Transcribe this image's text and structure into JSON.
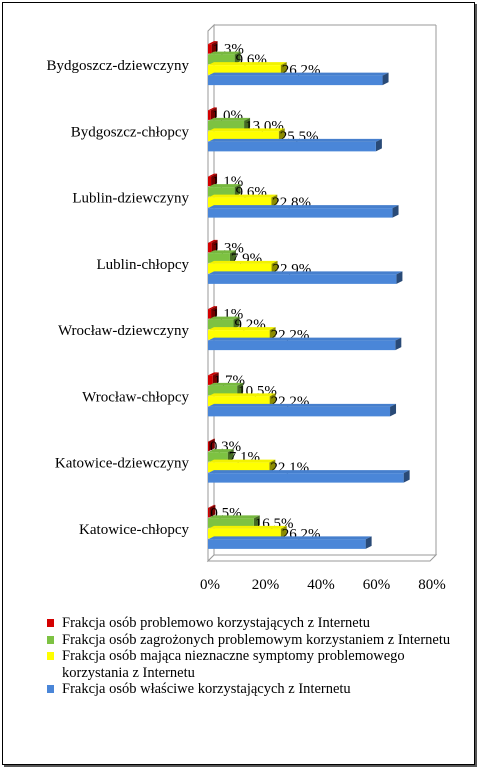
{
  "chart_data": {
    "type": "bar",
    "orientation": "horizontal",
    "categories": [
      "Bydgoszcz-dziewczyny",
      "Bydgoszcz-chłopcy",
      "Lublin-dziewczyny",
      "Lublin-chłopcy",
      "Wrocław-dziewczyny",
      "Wrocław-chłopcy",
      "Katowice-dziewczyny",
      "Katowice-chłopcy"
    ],
    "series": [
      {
        "name": "Frakcja osób problemowo korzystających z Internetu",
        "color": "#d40000",
        "values": [
          1.3,
          1.0,
          1.1,
          1.3,
          1.1,
          1.7,
          0.3,
          0.5
        ],
        "labels": [
          "1,3%",
          "1,0%",
          "1,1%",
          "1,3%",
          "1,1%",
          "1,7%",
          "0,3%",
          "0,5%"
        ]
      },
      {
        "name": "Frakcja osób zagrożonych problemowym korzystaniem z Internetu",
        "color": "#7dc242",
        "values": [
          9.6,
          13.0,
          9.6,
          7.9,
          9.2,
          10.5,
          7.1,
          16.5
        ],
        "labels": [
          "9,6%",
          "13,0%",
          "9,6%",
          "7,9%",
          "9,2%",
          "10,5%",
          "7,1%",
          "16,5%"
        ]
      },
      {
        "name": "Frakcja osób mająca nieznaczne symptomy problemowego korzystania z Internetu",
        "color": "#ffff00",
        "values": [
          26.2,
          25.5,
          22.8,
          22.9,
          22.2,
          22.2,
          22.1,
          26.2
        ],
        "labels": [
          "26,2%",
          "25,5%",
          "22,8%",
          "22,9%",
          "22,2%",
          "22,2%",
          "22,1%",
          "26,2%"
        ]
      },
      {
        "name": "Frakcja osób właściwe korzystających  z Internetu",
        "color": "#4a86d8",
        "values": [
          62.9,
          60.5,
          66.5,
          67.9,
          67.5,
          65.6,
          70.5,
          56.8
        ],
        "labels": []
      }
    ],
    "xlim": [
      0,
      80
    ],
    "xticks": [
      0,
      20,
      40,
      60,
      80
    ],
    "xtick_labels": [
      "0%",
      "20%",
      "40%",
      "60%",
      "80%"
    ],
    "grid": false,
    "legend_position": "bottom",
    "style": "3d"
  }
}
